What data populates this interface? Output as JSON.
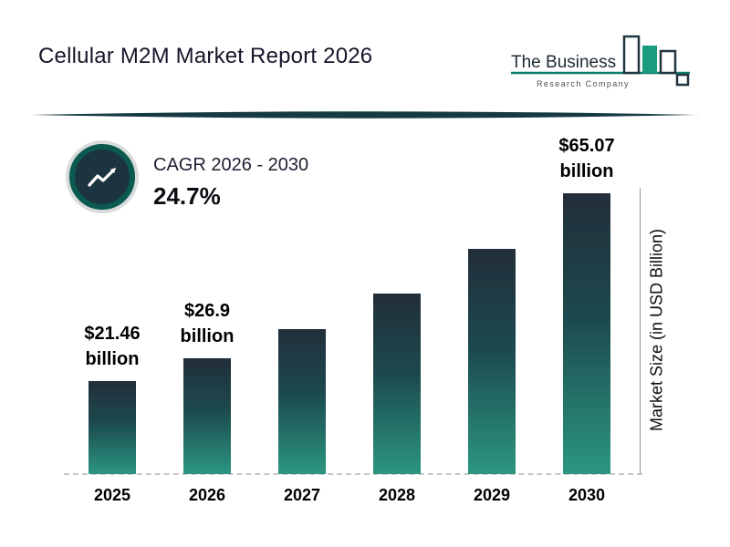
{
  "page": {
    "background": "#FFFFFF"
  },
  "header": {
    "title": "Cellular M2M Market Report 2026",
    "logo": {
      "name": "The Business Research Company",
      "line1": "The Business",
      "line2": "Research Company"
    }
  },
  "cagr": {
    "icon": "trend-up-icon",
    "label": "CAGR 2026 - 2030",
    "value": "24.7%"
  },
  "chart_data": {
    "type": "bar",
    "title": "Cellular M2M Market Report 2026",
    "categories": [
      "2025",
      "2026",
      "2027",
      "2028",
      "2029",
      "2030"
    ],
    "values": [
      21.46,
      26.9,
      33.5,
      41.8,
      52.2,
      65.07
    ],
    "bar_labels": [
      {
        "amount": "$21.46",
        "unit": "billion"
      },
      {
        "amount": "$26.9",
        "unit": "billion"
      },
      null,
      null,
      null,
      {
        "amount": "$65.07",
        "unit": "billion"
      }
    ],
    "xlabel": "",
    "ylabel": "Market Size (in USD Billion)",
    "ylim": [
      0,
      70
    ],
    "grid": false,
    "legend": false,
    "colors": {
      "bar_gradient_top": "#222E3A",
      "bar_gradient_bottom": "#2B9681",
      "accent_teal": "#0E7F6D",
      "divider": "#163A43"
    }
  }
}
